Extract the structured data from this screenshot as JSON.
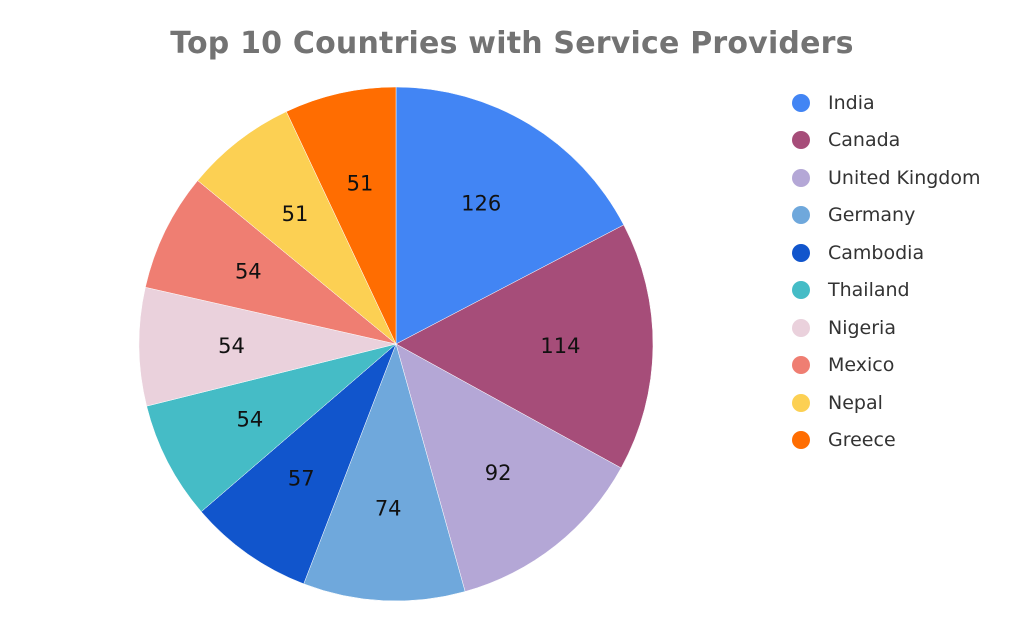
{
  "chart_data": {
    "type": "pie",
    "title": "Top 10 Countries with Service Providers",
    "legend_position": "right",
    "slices": [
      {
        "label": "India",
        "value": 126,
        "color": "#4285f4"
      },
      {
        "label": "Canada",
        "value": 114,
        "color": "#a64d79"
      },
      {
        "label": "United Kingdom",
        "value": 92,
        "color": "#b4a7d6"
      },
      {
        "label": "Germany",
        "value": 74,
        "color": "#6fa8dc"
      },
      {
        "label": "Cambodia",
        "value": 57,
        "color": "#1155cc"
      },
      {
        "label": "Thailand",
        "value": 54,
        "color": "#45bcc6"
      },
      {
        "label": "Nigeria",
        "value": 54,
        "color": "#ead1dc"
      },
      {
        "label": "Mexico",
        "value": 54,
        "color": "#ef7e72"
      },
      {
        "label": "Nepal",
        "value": 51,
        "color": "#fcd053"
      },
      {
        "label": "Greece",
        "value": 51,
        "color": "#ff6d01"
      }
    ]
  }
}
